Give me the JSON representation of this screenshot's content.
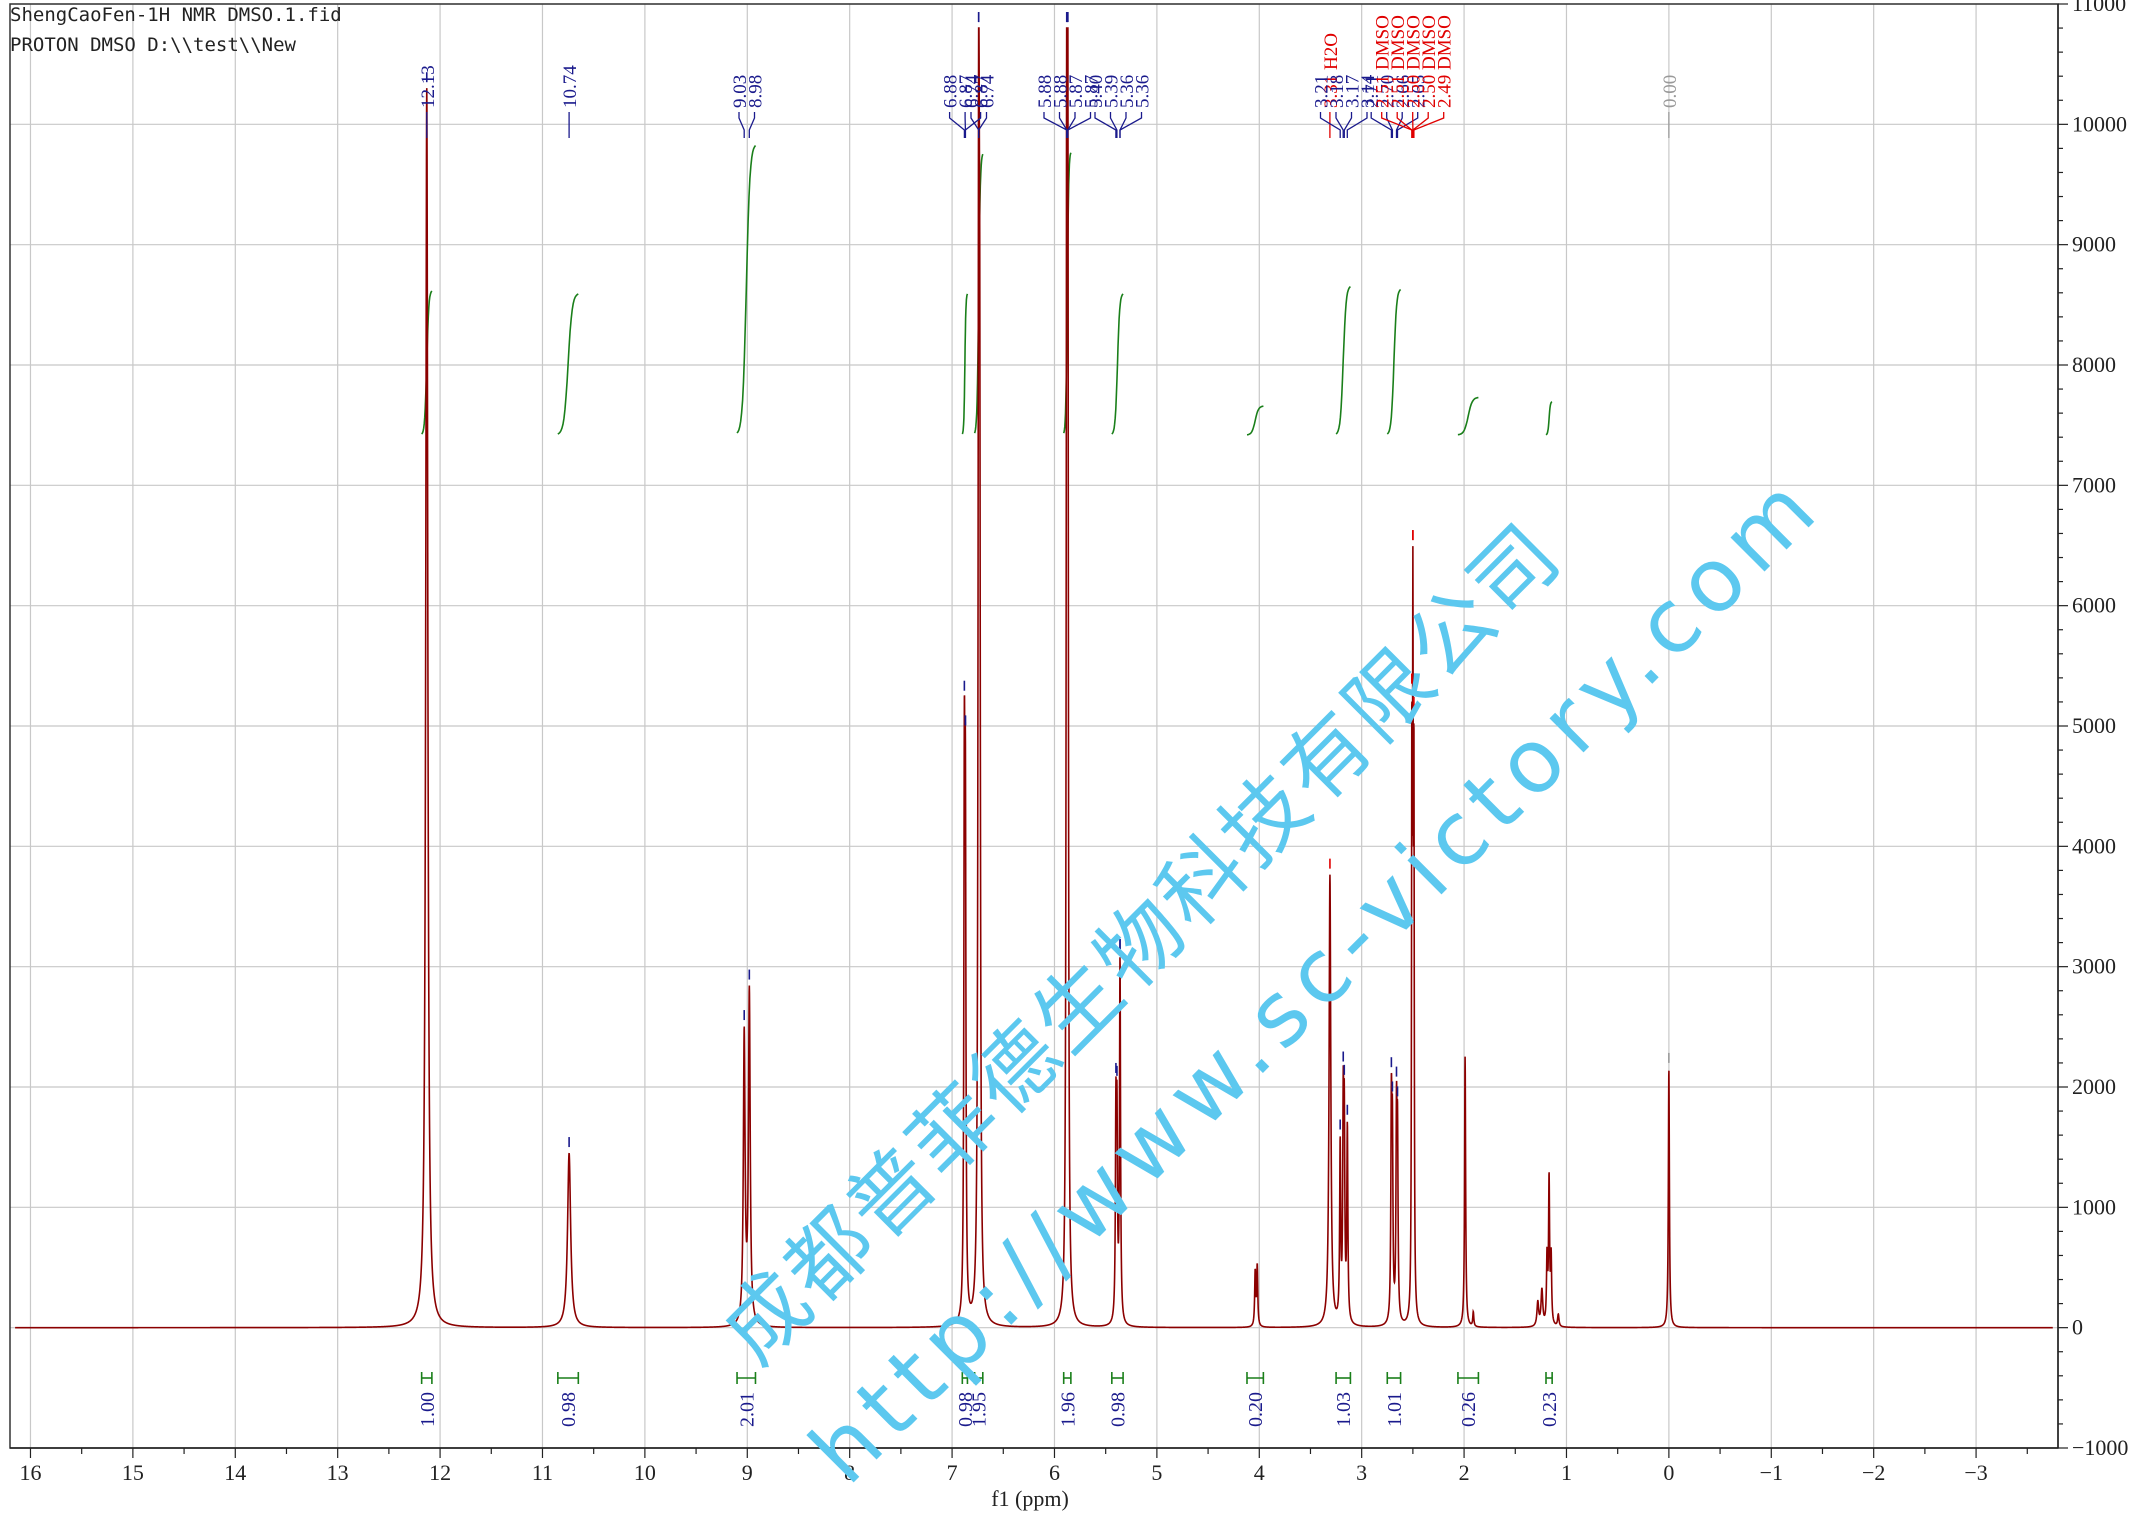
{
  "header": {
    "line1": "ShengCaoFen-1H NMR DMSO.1.fid",
    "line2": "PROTON DMSO D:\\\\test\\\\New"
  },
  "watermark": {
    "cn": "成都普菲德生物科技有限公司",
    "url": "http://www.sc-victory.com",
    "color": "#5cc8ef"
  },
  "chart_data": {
    "type": "line",
    "xlabel": "f1 (ppm)",
    "ylabel": "",
    "xlim": [
      16.2,
      -3.8
    ],
    "ylim": [
      -1000,
      11000
    ],
    "x_ticks": [
      "16",
      "15",
      "14",
      "13",
      "12",
      "11",
      "10",
      "9",
      "8",
      "7",
      "6",
      "5",
      "4",
      "3",
      "2",
      "1",
      "0",
      "−1",
      "−2",
      "−3"
    ],
    "x_tick_values": [
      16,
      15,
      14,
      13,
      12,
      11,
      10,
      9,
      8,
      7,
      6,
      5,
      4,
      3,
      2,
      1,
      0,
      -1,
      -2,
      -3
    ],
    "y_ticks": [
      "11000",
      "10000",
      "9000",
      "8000",
      "7000",
      "6000",
      "5000",
      "4000",
      "3000",
      "2000",
      "1000",
      "0",
      "−1000"
    ],
    "y_tick_values": [
      11000,
      10000,
      9000,
      8000,
      7000,
      6000,
      5000,
      4000,
      3000,
      2000,
      1000,
      0,
      -1000
    ],
    "grid": true,
    "y_axis_side": "right",
    "colors": {
      "spectrum": "#8b0000",
      "integral": "#1a7f1a",
      "peak_label": "#1a1a8c",
      "solvent_label": "#e00000",
      "tms_label": "#999999",
      "grid": "#c8c8c8"
    },
    "spectrum_peaks": [
      {
        "ppm": 12.13,
        "height": 10300,
        "width": 0.012
      },
      {
        "ppm": 10.74,
        "height": 1450,
        "width": 0.018
      },
      {
        "ppm": 9.03,
        "height": 2400,
        "width": 0.01
      },
      {
        "ppm": 8.98,
        "height": 2750,
        "width": 0.01
      },
      {
        "ppm": 6.88,
        "height": 4200,
        "width": 0.006
      },
      {
        "ppm": 6.87,
        "height": 3800,
        "width": 0.006
      },
      {
        "ppm": 6.74,
        "height": 9400,
        "width": 0.007
      },
      {
        "ppm": 6.73,
        "height": 6000,
        "width": 0.007
      },
      {
        "ppm": 5.88,
        "height": 9700,
        "width": 0.006
      },
      {
        "ppm": 5.87,
        "height": 9000,
        "width": 0.006
      },
      {
        "ppm": 5.4,
        "height": 1600,
        "width": 0.006
      },
      {
        "ppm": 5.39,
        "height": 1500,
        "width": 0.006
      },
      {
        "ppm": 5.36,
        "height": 1600,
        "width": 0.006
      },
      {
        "ppm": 5.36,
        "height": 1400,
        "width": 0.006
      },
      {
        "ppm": 4.04,
        "height": 450,
        "width": 0.006
      },
      {
        "ppm": 4.02,
        "height": 500,
        "width": 0.006
      },
      {
        "ppm": 3.31,
        "height": 3750,
        "width": 0.01
      },
      {
        "ppm": 3.21,
        "height": 1450,
        "width": 0.006
      },
      {
        "ppm": 3.18,
        "height": 1650,
        "width": 0.006
      },
      {
        "ppm": 3.17,
        "height": 1500,
        "width": 0.006
      },
      {
        "ppm": 3.14,
        "height": 1600,
        "width": 0.006
      },
      {
        "ppm": 2.71,
        "height": 1700,
        "width": 0.006
      },
      {
        "ppm": 2.7,
        "height": 1400,
        "width": 0.006
      },
      {
        "ppm": 2.66,
        "height": 1600,
        "width": 0.006
      },
      {
        "ppm": 2.65,
        "height": 1400,
        "width": 0.006
      },
      {
        "ppm": 2.51,
        "height": 4400,
        "width": 0.004
      },
      {
        "ppm": 2.5,
        "height": 5300,
        "width": 0.004
      },
      {
        "ppm": 2.49,
        "height": 4200,
        "width": 0.004
      },
      {
        "ppm": 1.99,
        "height": 2250,
        "width": 0.006
      },
      {
        "ppm": 1.91,
        "height": 120,
        "width": 0.006
      },
      {
        "ppm": 1.17,
        "height": 1200,
        "width": 0.006
      },
      {
        "ppm": 1.19,
        "height": 550,
        "width": 0.006
      },
      {
        "ppm": 1.15,
        "height": 550,
        "width": 0.006
      },
      {
        "ppm": 1.24,
        "height": 300,
        "width": 0.01
      },
      {
        "ppm": 1.28,
        "height": 200,
        "width": 0.01
      },
      {
        "ppm": 1.08,
        "height": 100,
        "width": 0.008
      },
      {
        "ppm": 0.0,
        "height": 2150,
        "width": 0.006
      }
    ],
    "peak_labels": [
      {
        "text": "12.13",
        "group": 1,
        "ppm": 12.13,
        "kind": "normal"
      },
      {
        "text": "10.74",
        "group": 2,
        "ppm": 10.74,
        "kind": "normal"
      },
      {
        "text": "9.03",
        "group": 3,
        "ppm": 9.03,
        "kind": "normal"
      },
      {
        "text": "8.98",
        "group": 3,
        "ppm": 8.98,
        "kind": "normal"
      },
      {
        "text": "6.88",
        "group": 4,
        "ppm": 6.88,
        "kind": "normal"
      },
      {
        "text": "6.87",
        "group": 4,
        "ppm": 6.87,
        "kind": "normal"
      },
      {
        "text": "6.87",
        "group": 4,
        "ppm": 6.87,
        "kind": "normal"
      },
      {
        "text": "6.74",
        "group": 5,
        "ppm": 6.74,
        "kind": "normal"
      },
      {
        "text": "6.74",
        "group": 5,
        "ppm": 6.74,
        "kind": "normal"
      },
      {
        "text": "5.88",
        "group": 6,
        "ppm": 5.88,
        "kind": "normal"
      },
      {
        "text": "5.88",
        "group": 6,
        "ppm": 5.88,
        "kind": "normal"
      },
      {
        "text": "5.87",
        "group": 6,
        "ppm": 5.87,
        "kind": "normal"
      },
      {
        "text": "5.87",
        "group": 6,
        "ppm": 5.87,
        "kind": "normal"
      },
      {
        "text": "5.40",
        "group": 7,
        "ppm": 5.4,
        "kind": "normal"
      },
      {
        "text": "5.39",
        "group": 7,
        "ppm": 5.39,
        "kind": "normal"
      },
      {
        "text": "5.36",
        "group": 7,
        "ppm": 5.36,
        "kind": "normal"
      },
      {
        "text": "5.36",
        "group": 7,
        "ppm": 5.36,
        "kind": "normal"
      },
      {
        "text": "3.31 H2O",
        "group": 8,
        "ppm": 3.31,
        "kind": "solvent"
      },
      {
        "text": "3.21",
        "group": 9,
        "ppm": 3.21,
        "kind": "normal"
      },
      {
        "text": "3.18",
        "group": 9,
        "ppm": 3.18,
        "kind": "normal"
      },
      {
        "text": "3.17",
        "group": 9,
        "ppm": 3.17,
        "kind": "normal"
      },
      {
        "text": "3.14",
        "group": 9,
        "ppm": 3.14,
        "kind": "normal"
      },
      {
        "text": "2.71",
        "group": 10,
        "ppm": 2.71,
        "kind": "normal"
      },
      {
        "text": "2.70",
        "group": 10,
        "ppm": 2.7,
        "kind": "normal"
      },
      {
        "text": "2.66",
        "group": 10,
        "ppm": 2.66,
        "kind": "normal"
      },
      {
        "text": "2.65",
        "group": 10,
        "ppm": 2.65,
        "kind": "normal"
      },
      {
        "text": "2.51 DMSO",
        "group": 11,
        "ppm": 2.51,
        "kind": "solvent"
      },
      {
        "text": "2.51 DMSO",
        "group": 11,
        "ppm": 2.51,
        "kind": "solvent"
      },
      {
        "text": "2.50 DMSO",
        "group": 11,
        "ppm": 2.5,
        "kind": "solvent"
      },
      {
        "text": "2.50 DMSO",
        "group": 11,
        "ppm": 2.5,
        "kind": "solvent"
      },
      {
        "text": "2.49 DMSO",
        "group": 11,
        "ppm": 2.49,
        "kind": "solvent"
      },
      {
        "text": "0.00",
        "group": 12,
        "ppm": 0.0,
        "kind": "tms"
      }
    ],
    "integrals": [
      {
        "ppm_start": 12.18,
        "ppm_end": 12.08,
        "value": "1.00"
      },
      {
        "ppm_start": 10.85,
        "ppm_end": 10.65,
        "value": "0.98"
      },
      {
        "ppm_start": 9.1,
        "ppm_end": 8.92,
        "value": "2.01"
      },
      {
        "ppm_start": 6.9,
        "ppm_end": 6.85,
        "value": "0.98"
      },
      {
        "ppm_start": 6.78,
        "ppm_end": 6.7,
        "value": "1.95"
      },
      {
        "ppm_start": 5.91,
        "ppm_end": 5.84,
        "value": "1.96"
      },
      {
        "ppm_start": 5.44,
        "ppm_end": 5.33,
        "value": "0.98"
      },
      {
        "ppm_start": 4.12,
        "ppm_end": 3.96,
        "value": "0.20"
      },
      {
        "ppm_start": 3.25,
        "ppm_end": 3.11,
        "value": "1.03"
      },
      {
        "ppm_start": 2.75,
        "ppm_end": 2.62,
        "value": "1.01"
      },
      {
        "ppm_start": 2.06,
        "ppm_end": 1.86,
        "value": "0.26"
      },
      {
        "ppm_start": 1.2,
        "ppm_end": 1.14,
        "value": "0.23"
      }
    ]
  }
}
